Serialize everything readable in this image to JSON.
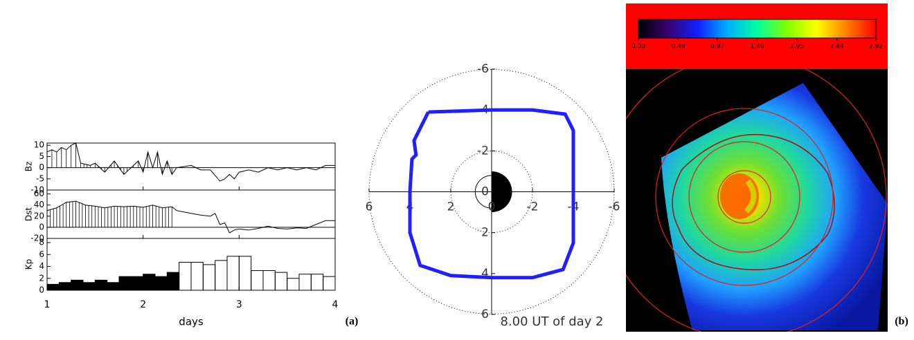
{
  "chart_data": [
    {
      "type": "line",
      "ylabel": "Bz",
      "xlim": [
        1,
        4
      ],
      "ylim": [
        -10,
        11
      ],
      "yticks": [
        -10,
        -5,
        0,
        5,
        10
      ],
      "series": [
        {
          "color": "#000000",
          "hatch": true,
          "x": [
            1.0,
            1.05,
            1.1,
            1.15,
            1.2,
            1.25,
            1.3,
            1.35,
            1.45,
            1.5,
            1.6,
            1.7,
            1.8,
            1.9,
            1.95,
            2.0,
            2.05,
            2.1,
            2.15,
            2.2,
            2.25,
            2.3,
            2.35
          ],
          "values": [
            7,
            8,
            7,
            9,
            8,
            10,
            11,
            2,
            1,
            2,
            -2,
            3,
            -3,
            1,
            3,
            -2,
            7,
            0,
            7,
            -3,
            3,
            -3,
            0
          ]
        },
        {
          "color": "#000000",
          "x": [
            2.35,
            2.5,
            2.6,
            2.7,
            2.8,
            2.85,
            2.9,
            2.95,
            3.0,
            3.1,
            3.2,
            3.3,
            3.4,
            3.5,
            3.6,
            3.7,
            3.8,
            3.9,
            4.0
          ],
          "values": [
            0,
            1,
            -1,
            -1,
            -6,
            -5,
            -3,
            -5,
            -2,
            -1,
            -2,
            0,
            -1,
            0,
            -1,
            0,
            -1,
            1,
            1
          ]
        }
      ]
    },
    {
      "type": "line",
      "ylabel": "Dst",
      "xlim": [
        1,
        4
      ],
      "ylim": [
        -20,
        67
      ],
      "yticks": [
        -20,
        0,
        20,
        40,
        60
      ],
      "series": [
        {
          "color": "#000000",
          "hatch": true,
          "x": [
            1.0,
            1.1,
            1.2,
            1.3,
            1.4,
            1.5,
            1.6,
            1.7,
            1.8,
            1.9,
            2.0,
            2.1,
            2.2,
            2.3,
            2.35
          ],
          "values": [
            30,
            35,
            45,
            47,
            40,
            38,
            35,
            38,
            37,
            38,
            36,
            40,
            35,
            37,
            30
          ]
        },
        {
          "color": "#000000",
          "x": [
            2.35,
            2.5,
            2.6,
            2.7,
            2.75,
            2.8,
            2.85,
            2.9,
            2.95,
            3.0,
            3.1,
            3.2,
            3.3,
            3.4,
            3.5,
            3.6,
            3.7,
            3.8,
            3.9,
            4.0
          ],
          "values": [
            30,
            25,
            22,
            20,
            25,
            5,
            8,
            -10,
            -5,
            -3,
            -5,
            -2,
            2,
            -2,
            -3,
            -1,
            -2,
            5,
            12,
            12
          ]
        }
      ]
    },
    {
      "type": "histogram",
      "ylabel": "Kp",
      "xlabel": "days",
      "panel_label": "(a)",
      "xlim": [
        1,
        4
      ],
      "xticks": [
        1,
        2,
        3,
        4
      ],
      "ylim": [
        0,
        8.7
      ],
      "yticks": [
        0,
        2,
        4,
        6,
        8
      ],
      "series": [
        {
          "color": "#000000",
          "fill": "#000000",
          "bins": [
            1,
            1.125,
            1.25,
            1.375,
            1.5,
            1.625,
            1.75,
            1.875,
            2,
            2.125,
            2.25,
            2.375
          ],
          "values": [
            1,
            1.3,
            1.7,
            1.3,
            1.7,
            1.3,
            2.3,
            2.3,
            2.7,
            2.3,
            3
          ]
        },
        {
          "color": "#000000",
          "fill": "none",
          "bins": [
            2.375,
            2.5,
            2.625,
            2.75,
            2.875,
            3,
            3.125,
            3.25,
            3.375,
            3.5,
            3.625,
            3.75,
            3.875,
            4
          ],
          "values": [
            4.7,
            4.7,
            4.3,
            5,
            5.7,
            5.7,
            3.3,
            3.3,
            3,
            2,
            2.7,
            2.7,
            2.3
          ]
        }
      ]
    },
    {
      "type": "polar",
      "caption": "8.00 UT of day 2",
      "xlim": [
        6,
        -6
      ],
      "ylim": [
        6,
        -6
      ],
      "xticks": [
        -6,
        -4,
        -2,
        0,
        2,
        4,
        6
      ],
      "yticks": [
        -6,
        -4,
        -2,
        0,
        2,
        4,
        6
      ],
      "series": [
        {
          "color": "#1f1fff",
          "x": [
            3.1,
            0,
            -2,
            -3.6,
            -4.0,
            -4.0,
            -4.0,
            -3.5,
            -2,
            0,
            2,
            3.5,
            4.0,
            4.0,
            3.9,
            3.7,
            3.8,
            3.1
          ],
          "values": [
            -3.9,
            -4.0,
            -4.0,
            -3.8,
            -3.0,
            0,
            2.5,
            3.8,
            4.2,
            4.2,
            4.1,
            3.6,
            2,
            0,
            -1.6,
            -1.8,
            -2.5,
            -3.9
          ]
        }
      ]
    },
    {
      "type": "image",
      "panel_label": "(b)",
      "clim": [
        0,
        2.92
      ],
      "colormap": [
        "#000000",
        "#3a0070",
        "#1020ff",
        "#00b0ff",
        "#00ffa0",
        "#80ff00",
        "#ffff00",
        "#ff8000",
        "#ff0000"
      ],
      "cticks": [
        {
          "value": 0,
          "label": "0.00"
        },
        {
          "value": 0.49,
          "label": "0.49"
        },
        {
          "value": 0.97,
          "label": "0.97"
        },
        {
          "value": 1.46,
          "label": "1.46"
        },
        {
          "value": 1.95,
          "label": "1.95"
        },
        {
          "value": 2.44,
          "label": "2.44"
        },
        {
          "value": 2.92,
          "label": "2.92"
        }
      ]
    }
  ]
}
